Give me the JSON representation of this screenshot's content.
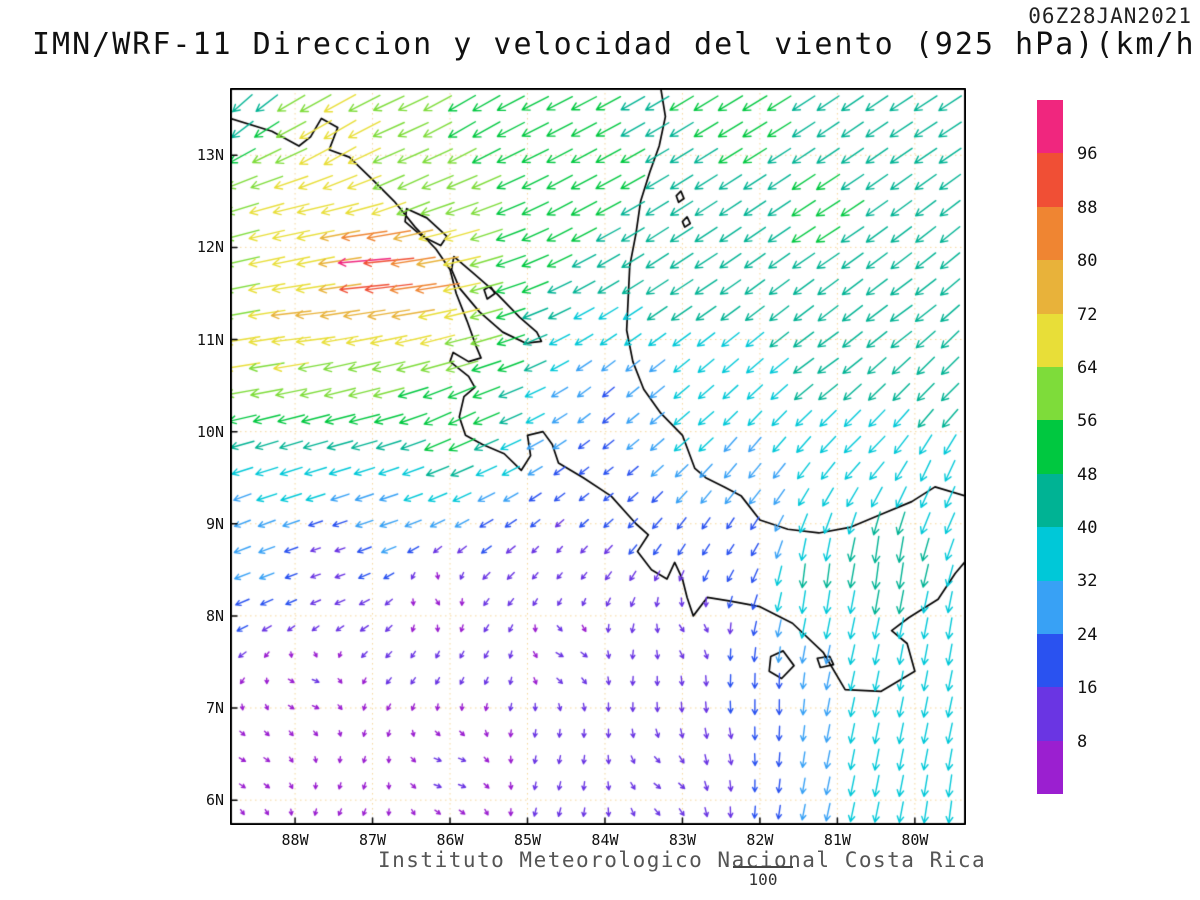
{
  "title": "IMN/WRF-11 Direccion y velocidad del viento (925 hPa)(km/h)",
  "timestamp": "06Z28JAN2021",
  "footer": {
    "institute": "Instituto Meteorologico Nacional Costa Rica",
    "ref_value": "100"
  },
  "axes": {
    "lat_range": [
      5.73,
      13.73
    ],
    "lon_range": [
      -88.84,
      -79.34
    ],
    "lat_ticks": [
      {
        "label": "6N",
        "value": 6
      },
      {
        "label": "7N",
        "value": 7
      },
      {
        "label": "8N",
        "value": 8
      },
      {
        "label": "9N",
        "value": 9
      },
      {
        "label": "10N",
        "value": 10
      },
      {
        "label": "11N",
        "value": 11
      },
      {
        "label": "12N",
        "value": 12
      },
      {
        "label": "13N",
        "value": 13
      }
    ],
    "lon_ticks": [
      {
        "label": "88W",
        "value": -88
      },
      {
        "label": "87W",
        "value": -87
      },
      {
        "label": "86W",
        "value": -86
      },
      {
        "label": "85W",
        "value": -85
      },
      {
        "label": "84W",
        "value": -84
      },
      {
        "label": "83W",
        "value": -83
      },
      {
        "label": "82W",
        "value": -82
      },
      {
        "label": "81W",
        "value": -81
      },
      {
        "label": "80W",
        "value": -80
      }
    ]
  },
  "colorbar": {
    "levels": [
      8,
      16,
      24,
      32,
      40,
      48,
      56,
      64,
      72,
      80,
      88,
      96
    ],
    "colors": [
      "#9b1fd0",
      "#6a35e3",
      "#2a52f0",
      "#38a1f5",
      "#00c8d8",
      "#00b394",
      "#00c840",
      "#7edc3a",
      "#e8de38",
      "#e8b23a",
      "#ef8532",
      "#f04f35",
      "#f0267e"
    ]
  },
  "chart_data": {
    "type": "vector_field",
    "variable": "wind direction and speed",
    "level": "925 hPa",
    "units": "km/h",
    "model": "IMN/WRF-11",
    "valid_time": "06Z28JAN2021",
    "reference_speed": 100,
    "grid_step_deg": {
      "lon": 0.315,
      "lat": 0.285
    },
    "speed_levels": [
      8,
      16,
      24,
      32,
      40,
      48,
      56,
      64,
      72,
      80,
      88,
      96
    ],
    "control_points": [
      {
        "lat": 13.5,
        "lon": -79.8,
        "u": -40,
        "v": -26
      },
      {
        "lat": 13.5,
        "lon": -82.3,
        "u": -43,
        "v": -26
      },
      {
        "lat": 12.3,
        "lon": -81.2,
        "u": -42,
        "v": -27
      },
      {
        "lat": 11.3,
        "lon": -80.2,
        "u": -38,
        "v": -28
      },
      {
        "lat": 10.6,
        "lon": -79.6,
        "u": -30,
        "v": -30
      },
      {
        "lat": 12.6,
        "lon": -84.3,
        "u": -45,
        "v": -24
      },
      {
        "lat": 13.4,
        "lon": -85.8,
        "u": -48,
        "v": -28
      },
      {
        "lat": 11.8,
        "lon": -83.0,
        "u": -40,
        "v": -26
      },
      {
        "lat": 10.8,
        "lon": -81.2,
        "u": -36,
        "v": -26
      },
      {
        "lat": 13.2,
        "lon": -87.5,
        "u": -58,
        "v": -34
      },
      {
        "lat": 13.65,
        "lon": -88.7,
        "u": -34,
        "v": -30
      },
      {
        "lat": 12.7,
        "lon": -86.6,
        "u": -55,
        "v": -25
      },
      {
        "lat": 11.8,
        "lon": -87.0,
        "u": -100,
        "v": -8
      },
      {
        "lat": 11.55,
        "lon": -86.4,
        "u": -86,
        "v": -12
      },
      {
        "lat": 12.1,
        "lon": -87.8,
        "u": -68,
        "v": -14
      },
      {
        "lat": 11.2,
        "lon": -87.9,
        "u": -74,
        "v": -8
      },
      {
        "lat": 10.8,
        "lon": -88.6,
        "u": -64,
        "v": -10
      },
      {
        "lat": 11.0,
        "lon": -86.1,
        "u": -62,
        "v": -16
      },
      {
        "lat": 10.4,
        "lon": -87.2,
        "u": -56,
        "v": -14
      },
      {
        "lat": 10.15,
        "lon": -85.95,
        "u": -48,
        "v": -22
      },
      {
        "lat": 9.6,
        "lon": -88.2,
        "u": -38,
        "v": -12
      },
      {
        "lat": 9.2,
        "lon": -86.9,
        "u": -30,
        "v": -10
      },
      {
        "lat": 9.0,
        "lon": -88.7,
        "u": -26,
        "v": -10
      },
      {
        "lat": 8.6,
        "lon": -87.6,
        "u": -12,
        "v": -4
      },
      {
        "lat": 8.2,
        "lon": -86.2,
        "u": 4,
        "v": -6
      },
      {
        "lat": 7.2,
        "lon": -87.8,
        "u": 8,
        "v": -3
      },
      {
        "lat": 6.3,
        "lon": -86.0,
        "u": 9,
        "v": -3
      },
      {
        "lat": 7.6,
        "lon": -84.5,
        "u": 9,
        "v": -5
      },
      {
        "lat": 6.2,
        "lon": -83.2,
        "u": 8,
        "v": -6
      },
      {
        "lat": 8.5,
        "lon": -84.6,
        "u": -6,
        "v": -7
      },
      {
        "lat": 6.4,
        "lon": -88.6,
        "u": 7,
        "v": -4
      },
      {
        "lat": 7.8,
        "lon": -82.9,
        "u": 6,
        "v": -8
      },
      {
        "lat": 9.5,
        "lon": -84.1,
        "u": -13,
        "v": -10
      },
      {
        "lat": 10.3,
        "lon": -83.9,
        "u": -18,
        "v": -15
      },
      {
        "lat": 10.15,
        "lon": -82.9,
        "u": -26,
        "v": -22
      },
      {
        "lat": 9.6,
        "lon": -82.2,
        "u": -20,
        "v": -24
      },
      {
        "lat": 9.4,
        "lon": -79.7,
        "u": -16,
        "v": -36
      },
      {
        "lat": 8.55,
        "lon": -80.4,
        "u": -6,
        "v": -48
      },
      {
        "lat": 8.4,
        "lon": -81.3,
        "u": -5,
        "v": -42
      },
      {
        "lat": 7.4,
        "lon": -80.1,
        "u": -6,
        "v": -33
      },
      {
        "lat": 6.4,
        "lon": -80.4,
        "u": -7,
        "v": -36
      },
      {
        "lat": 5.9,
        "lon": -79.5,
        "u": -5,
        "v": -38
      },
      {
        "lat": 7.1,
        "lon": -81.9,
        "u": 0,
        "v": -24
      },
      {
        "lat": 6.6,
        "lon": -82.5,
        "u": 3,
        "v": -14
      },
      {
        "lat": 8.8,
        "lon": -82.4,
        "u": -10,
        "v": -15
      },
      {
        "lat": 7.8,
        "lon": -79.5,
        "u": -6,
        "v": -36
      },
      {
        "lat": 9.9,
        "lon": -80.7,
        "u": -28,
        "v": -28
      }
    ],
    "coastlines": {
      "open": [
        [
          [
            -88.84,
            13.4
          ],
          [
            -88.3,
            13.26
          ],
          [
            -87.95,
            13.1
          ],
          [
            -87.8,
            13.2
          ],
          [
            -87.66,
            13.4
          ],
          [
            -87.45,
            13.3
          ],
          [
            -87.56,
            13.06
          ],
          [
            -87.3,
            12.98
          ],
          [
            -87.03,
            12.76
          ],
          [
            -86.72,
            12.5
          ],
          [
            -86.45,
            12.22
          ],
          [
            -86.18,
            11.98
          ],
          [
            -86.0,
            11.76
          ],
          [
            -85.92,
            11.5
          ],
          [
            -85.78,
            11.2
          ],
          [
            -85.66,
            10.92
          ],
          [
            -85.6,
            10.8
          ],
          [
            -85.76,
            10.76
          ],
          [
            -85.96,
            10.86
          ],
          [
            -86.0,
            10.76
          ],
          [
            -85.76,
            10.6
          ],
          [
            -85.68,
            10.48
          ],
          [
            -85.82,
            10.38
          ],
          [
            -85.88,
            10.16
          ],
          [
            -85.8,
            9.96
          ],
          [
            -85.58,
            9.86
          ],
          [
            -85.3,
            9.76
          ],
          [
            -85.08,
            9.58
          ],
          [
            -84.96,
            9.74
          ],
          [
            -85.0,
            9.96
          ],
          [
            -84.8,
            10.0
          ],
          [
            -84.68,
            9.86
          ],
          [
            -84.6,
            9.66
          ],
          [
            -84.28,
            9.5
          ],
          [
            -83.92,
            9.3
          ],
          [
            -83.6,
            9.0
          ],
          [
            -83.44,
            8.88
          ],
          [
            -83.58,
            8.7
          ],
          [
            -83.4,
            8.5
          ],
          [
            -83.2,
            8.4
          ],
          [
            -83.1,
            8.58
          ],
          [
            -83.0,
            8.4
          ],
          [
            -82.94,
            8.2
          ],
          [
            -82.86,
            8.0
          ],
          [
            -82.68,
            8.2
          ],
          [
            -82.38,
            8.16
          ],
          [
            -82.0,
            8.1
          ],
          [
            -81.58,
            7.92
          ],
          [
            -81.18,
            7.6
          ],
          [
            -80.9,
            7.2
          ],
          [
            -80.44,
            7.18
          ],
          [
            -80.0,
            7.4
          ],
          [
            -80.1,
            7.7
          ],
          [
            -80.3,
            7.84
          ],
          [
            -80.08,
            7.98
          ],
          [
            -79.7,
            8.18
          ],
          [
            -79.48,
            8.46
          ],
          [
            -79.34,
            8.6
          ]
        ],
        [
          [
            -79.34,
            9.3
          ],
          [
            -79.74,
            9.4
          ],
          [
            -80.04,
            9.24
          ],
          [
            -80.44,
            9.1
          ],
          [
            -80.84,
            8.96
          ],
          [
            -81.24,
            8.9
          ],
          [
            -81.64,
            8.94
          ],
          [
            -82.0,
            9.04
          ],
          [
            -82.24,
            9.3
          ],
          [
            -82.46,
            9.4
          ],
          [
            -82.7,
            9.5
          ],
          [
            -82.84,
            9.6
          ],
          [
            -83.0,
            9.96
          ],
          [
            -83.28,
            10.2
          ],
          [
            -83.5,
            10.46
          ],
          [
            -83.64,
            10.76
          ],
          [
            -83.72,
            11.1
          ],
          [
            -83.7,
            11.45
          ],
          [
            -83.68,
            11.8
          ],
          [
            -83.6,
            12.15
          ],
          [
            -83.54,
            12.5
          ],
          [
            -83.42,
            12.82
          ],
          [
            -83.3,
            13.1
          ],
          [
            -83.22,
            13.42
          ],
          [
            -83.28,
            13.73
          ]
        ]
      ],
      "closed": [
        [
          [
            -85.95,
            11.9
          ],
          [
            -85.7,
            11.72
          ],
          [
            -85.4,
            11.5
          ],
          [
            -85.1,
            11.24
          ],
          [
            -84.88,
            11.08
          ],
          [
            -84.82,
            10.98
          ],
          [
            -85.02,
            10.96
          ],
          [
            -85.32,
            11.08
          ],
          [
            -85.62,
            11.3
          ],
          [
            -85.88,
            11.56
          ],
          [
            -85.98,
            11.76
          ]
        ],
        [
          [
            -86.56,
            12.42
          ],
          [
            -86.3,
            12.32
          ],
          [
            -86.04,
            12.12
          ],
          [
            -86.12,
            12.02
          ],
          [
            -86.36,
            12.12
          ],
          [
            -86.58,
            12.28
          ]
        ],
        [
          [
            -85.56,
            11.54
          ],
          [
            -85.48,
            11.58
          ],
          [
            -85.42,
            11.5
          ],
          [
            -85.52,
            11.44
          ]
        ],
        [
          [
            -81.86,
            7.56
          ],
          [
            -81.7,
            7.62
          ],
          [
            -81.56,
            7.46
          ],
          [
            -81.72,
            7.32
          ],
          [
            -81.88,
            7.4
          ]
        ],
        [
          [
            -81.26,
            7.54
          ],
          [
            -81.1,
            7.56
          ],
          [
            -81.05,
            7.47
          ],
          [
            -81.22,
            7.44
          ]
        ],
        [
          [
            -83.0,
            12.28
          ],
          [
            -82.94,
            12.33
          ],
          [
            -82.9,
            12.26
          ],
          [
            -82.97,
            12.22
          ]
        ],
        [
          [
            -83.08,
            12.56
          ],
          [
            -83.02,
            12.61
          ],
          [
            -82.98,
            12.53
          ],
          [
            -83.05,
            12.49
          ]
        ]
      ]
    }
  }
}
